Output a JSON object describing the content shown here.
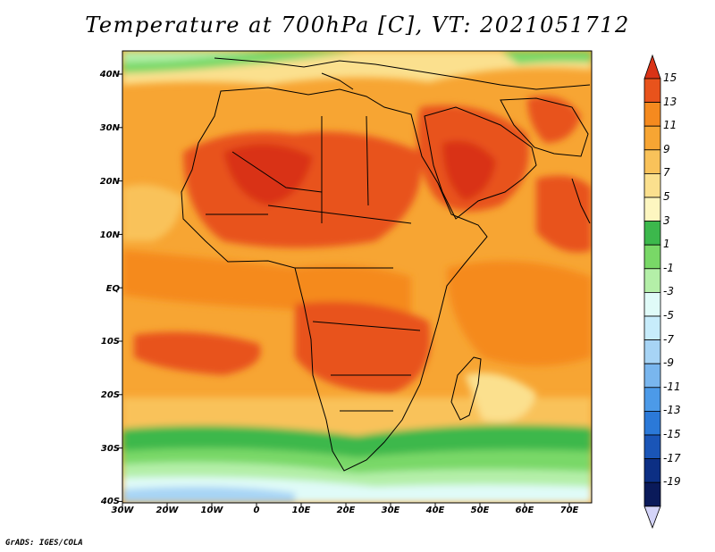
{
  "title": "Temperature at 700hPa [C], VT: 2021051712",
  "credit": "GrADS: IGES/COLA",
  "map": {
    "projection": "lat-lon",
    "lon_range": [
      -30,
      75
    ],
    "lat_range": [
      -40,
      45
    ],
    "lat_labels": [
      "40N",
      "30N",
      "20N",
      "10N",
      "EQ",
      "10S",
      "20S",
      "30S",
      "40S"
    ],
    "lon_labels": [
      "30W",
      "20W",
      "10W",
      "0",
      "10E",
      "20E",
      "30E",
      "40E",
      "50E",
      "60E",
      "70E"
    ],
    "boundary_color": "#000000"
  },
  "colorbar": {
    "labels": [
      "15",
      "13",
      "11",
      "9",
      "7",
      "5",
      "3",
      "1",
      "-1",
      "-3",
      "-5",
      "-7",
      "-9",
      "-11",
      "-13",
      "-15",
      "-17",
      "-19"
    ],
    "colors": [
      "#d93317",
      "#e8531c",
      "#f58a1f",
      "#f7a533",
      "#f9c25a",
      "#fbe08e",
      "#fdf6c0",
      "#3cb84c",
      "#79d867",
      "#b4efa8",
      "#e0fbf8",
      "#c7ecfb",
      "#a7d4f5",
      "#79b6ee",
      "#4c9ae8",
      "#2b79d8",
      "#1a55b7",
      "#0c2f84",
      "#0a1a5a",
      "#d4d4f8"
    ]
  }
}
